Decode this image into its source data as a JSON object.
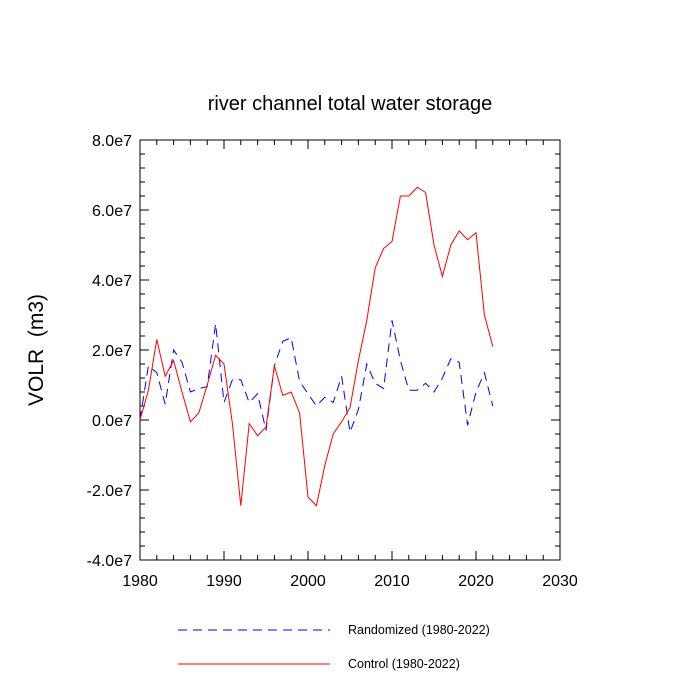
{
  "chart_data": {
    "type": "line",
    "title": "river channel total water storage",
    "xlabel": "",
    "ylabel": "VOLR  (m3)",
    "xlim": [
      1980,
      2030
    ],
    "ylim": [
      -40000000,
      80000000
    ],
    "x_ticks": [
      1980,
      1990,
      2000,
      2010,
      2020,
      2030
    ],
    "x_tick_labels": [
      "1980",
      "1990",
      "2000",
      "2010",
      "2020",
      "2030"
    ],
    "y_ticks": [
      -40000000,
      -20000000,
      0,
      20000000,
      40000000,
      60000000,
      80000000
    ],
    "y_tick_labels": [
      "-4.0e7",
      "-2.0e7",
      "0.0e7",
      "2.0e7",
      "4.0e7",
      "6.0e7",
      "8.0e7"
    ],
    "x": [
      1980,
      1981,
      1982,
      1983,
      1984,
      1985,
      1986,
      1987,
      1988,
      1989,
      1990,
      1991,
      1992,
      1993,
      1994,
      1995,
      1996,
      1997,
      1998,
      1999,
      2000,
      2001,
      2002,
      2003,
      2004,
      2005,
      2006,
      2007,
      2008,
      2009,
      2010,
      2011,
      2012,
      2013,
      2014,
      2015,
      2016,
      2017,
      2018,
      2019,
      2020,
      2021,
      2022
    ],
    "series": [
      {
        "name": "Randomized (1980-2022)",
        "color": "#0000ff",
        "dash": "dashed",
        "values": [
          0,
          15500000,
          13500000,
          4500000,
          20000000,
          16500000,
          8000000,
          9000000,
          9500000,
          27500000,
          5000000,
          11500000,
          11500000,
          5000000,
          7500000,
          -3000000,
          15500000,
          22500000,
          23500000,
          11000000,
          7500000,
          4000000,
          6500000,
          5000000,
          12500000,
          -3500000,
          3000000,
          16000000,
          10500000,
          9000000,
          28500000,
          17000000,
          8500000,
          8500000,
          10500000,
          8000000,
          12000000,
          17500000,
          16500000,
          -1500000,
          8000000,
          13500000,
          4000000
        ]
      },
      {
        "name": "Control (1980-2022)",
        "color": "#ff0000",
        "dash": "solid",
        "values": [
          0,
          8500000,
          23000000,
          12500000,
          17000000,
          8000000,
          -500000,
          2000000,
          10000000,
          18500000,
          16000000,
          -1000000,
          -24500000,
          -1000000,
          -4500000,
          -2000000,
          15500000,
          7000000,
          8000000,
          2000000,
          -22000000,
          -24500000,
          -13000000,
          -4000000,
          -500000,
          3500000,
          17000000,
          28500000,
          43500000,
          49000000,
          51000000,
          64000000,
          64000000,
          66500000,
          65000000,
          50000000,
          41000000,
          50000000,
          54000000,
          51500000,
          53500000,
          30000000,
          21000000
        ]
      }
    ],
    "legend_position": "bottom"
  }
}
